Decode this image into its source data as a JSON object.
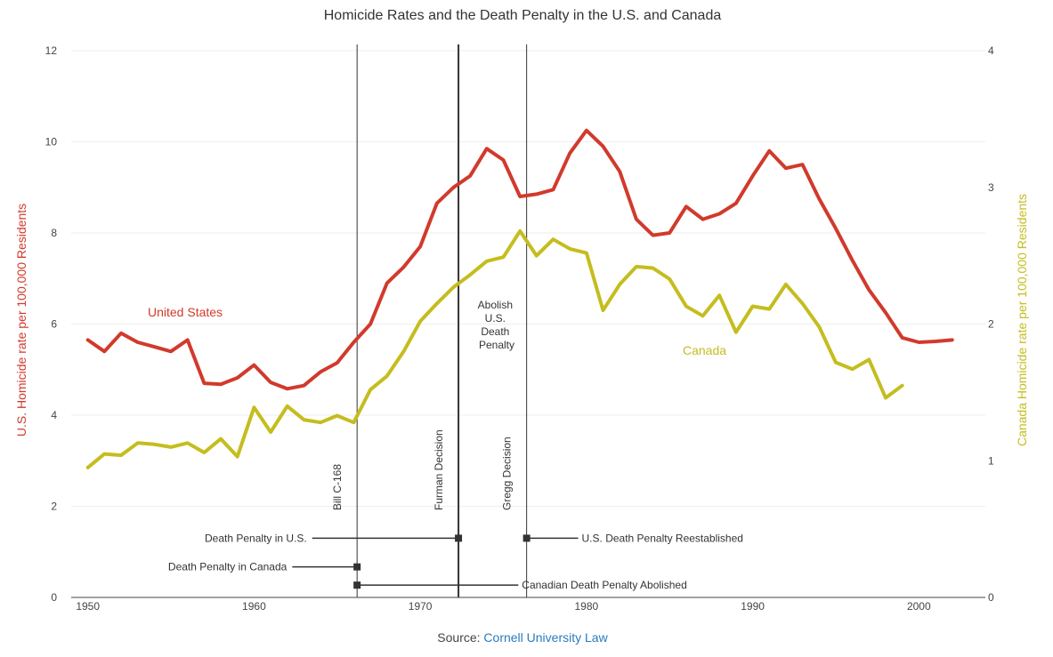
{
  "chart_data": {
    "type": "line",
    "title": "Homicide Rates and the Death Penalty in the U.S. and Canada",
    "xlabel": "",
    "ylabel": "U.S. Homicide rate per 100,000 Residents",
    "y2label": "Canada Homicide rate per 100,000 Residents",
    "xlim": [
      1949,
      2004
    ],
    "ylim": [
      0,
      12
    ],
    "y2lim": [
      0,
      4
    ],
    "x_ticks": [
      1950,
      1960,
      1970,
      1980,
      1990,
      2000
    ],
    "y_ticks": [
      0,
      2,
      4,
      6,
      8,
      10,
      12
    ],
    "y2_ticks": [
      0,
      1,
      2,
      3,
      4
    ],
    "series": [
      {
        "name": "United States",
        "axis": "left",
        "color": "#d13a2c",
        "x": [
          1950,
          1951,
          1952,
          1953,
          1954,
          1955,
          1956,
          1957,
          1958,
          1959,
          1960,
          1961,
          1962,
          1963,
          1964,
          1965,
          1966,
          1967,
          1968,
          1969,
          1970,
          1971,
          1972,
          1973,
          1974,
          1975,
          1976,
          1977,
          1978,
          1979,
          1980,
          1981,
          1982,
          1983,
          1984,
          1985,
          1986,
          1987,
          1988,
          1989,
          1990,
          1991,
          1992,
          1993,
          1994,
          1995,
          1996,
          1997,
          1998,
          1999,
          2000,
          2001,
          2002
        ],
        "values": [
          5.65,
          5.4,
          5.8,
          5.6,
          5.5,
          5.4,
          5.65,
          4.7,
          4.68,
          4.82,
          5.1,
          4.72,
          4.58,
          4.65,
          4.95,
          5.15,
          5.6,
          6.0,
          6.9,
          7.25,
          7.7,
          8.65,
          9.0,
          9.25,
          9.85,
          9.6,
          8.8,
          8.85,
          8.95,
          9.75,
          10.25,
          9.9,
          9.35,
          8.3,
          7.95,
          8.0,
          8.58,
          8.3,
          8.42,
          8.65,
          9.25,
          9.8,
          9.42,
          9.5,
          8.75,
          8.1,
          7.4,
          6.75,
          6.25,
          5.7,
          5.6,
          5.62,
          5.65
        ]
      },
      {
        "name": "Canada",
        "axis": "right",
        "color": "#c4bd1e",
        "x": [
          1950,
          1951,
          1952,
          1953,
          1954,
          1955,
          1956,
          1957,
          1958,
          1959,
          1960,
          1961,
          1962,
          1963,
          1964,
          1965,
          1966,
          1967,
          1968,
          1969,
          1970,
          1971,
          1972,
          1973,
          1974,
          1975,
          1976,
          1977,
          1978,
          1979,
          1980,
          1981,
          1982,
          1983,
          1984,
          1985,
          1986,
          1987,
          1988,
          1989,
          1990,
          1991,
          1992,
          1993,
          1994,
          1995,
          1996,
          1997,
          1998,
          1999
        ],
        "values": [
          0.95,
          1.05,
          1.04,
          1.13,
          1.12,
          1.1,
          1.13,
          1.06,
          1.16,
          1.03,
          1.39,
          1.21,
          1.4,
          1.3,
          1.28,
          1.33,
          1.28,
          1.52,
          1.62,
          1.8,
          2.02,
          2.15,
          2.27,
          2.36,
          2.46,
          2.49,
          2.68,
          2.5,
          2.62,
          2.55,
          2.52,
          2.1,
          2.29,
          2.42,
          2.41,
          2.33,
          2.13,
          2.06,
          2.21,
          1.94,
          2.13,
          2.11,
          2.29,
          2.15,
          1.98,
          1.72,
          1.67,
          1.74,
          1.46,
          1.55
        ]
      }
    ],
    "series_labels": {
      "us": "United States",
      "canada": "Canada"
    },
    "event_lines": [
      {
        "label": "Bill C-168",
        "x": 1966.2,
        "weight": "thin"
      },
      {
        "label": "Furman Decision",
        "x": 1972.3,
        "weight": "thick"
      },
      {
        "label": "Gregg Decision",
        "x": 1976.4,
        "weight": "thin"
      }
    ],
    "abolish_annotation": [
      "Abolish",
      "U.S.",
      "Death",
      "Penalty"
    ],
    "timeline": [
      {
        "label": "Death Penalty in U.S.",
        "start": 1963.5,
        "end": 1972.3,
        "y": 1.3,
        "label_side": "left"
      },
      {
        "label": "U.S. Death Penalty Reestablished",
        "start": 1976.4,
        "end": 1979.5,
        "y": 1.3,
        "label_side": "right"
      },
      {
        "label": "Death Penalty in Canada",
        "start": 1962.3,
        "end": 1966.2,
        "y": 0.67,
        "label_side": "left"
      },
      {
        "label": "Canadian Death Penalty Abolished",
        "start": 1966.2,
        "end": 1975.9,
        "y": 0.27,
        "label_side": "right"
      }
    ],
    "colors": {
      "us": "#d13a2c",
      "canada": "#c4bd1e",
      "link": "#2a7bbf",
      "text": "#444444",
      "grid": "#eeeeee"
    }
  },
  "source": {
    "prefix": "Source: ",
    "link_text": "Cornell University Law"
  }
}
